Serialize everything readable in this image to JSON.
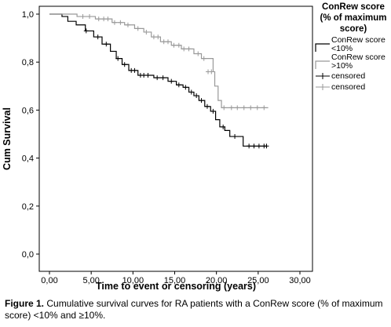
{
  "chart_data": {
    "type": "line",
    "subtype": "kaplan-meier",
    "xlabel": "Time to event or censoring (years)",
    "ylabel": "Cum Survival",
    "xlim": [
      0,
      30
    ],
    "ylim": [
      0,
      1.0
    ],
    "x_ticks": [
      "0,00",
      "5,00",
      "10,00",
      "15,00",
      "20,00",
      "25,00",
      "30,00"
    ],
    "y_ticks": [
      "0,0",
      "0,2",
      "0,4",
      "0,6",
      "0,8",
      "1,0"
    ],
    "grid": false,
    "legend": {
      "title_lines": [
        "ConRew score",
        "(% of maximum",
        "score)"
      ],
      "placement": "right",
      "entries": [
        {
          "label_lines": [
            "ConRew score",
            "<10%"
          ],
          "symbol": "step-line",
          "color": "#000000"
        },
        {
          "label_lines": [
            "ConRew score",
            ">10%"
          ],
          "symbol": "step-line",
          "color": "#999999"
        },
        {
          "label_lines": [
            "censored"
          ],
          "symbol": "plus",
          "color": "#000000"
        },
        {
          "label_lines": [
            "censored"
          ],
          "symbol": "plus",
          "color": "#999999"
        }
      ]
    },
    "series": [
      {
        "name": "ConRew score <10%",
        "color": "#000000",
        "steps": [
          [
            0,
            1.0
          ],
          [
            1.5,
            0.99
          ],
          [
            2.2,
            0.97
          ],
          [
            3.2,
            0.955
          ],
          [
            4.3,
            0.93
          ],
          [
            5.3,
            0.905
          ],
          [
            6.3,
            0.875
          ],
          [
            7.3,
            0.845
          ],
          [
            8.0,
            0.815
          ],
          [
            8.7,
            0.79
          ],
          [
            9.5,
            0.765
          ],
          [
            10.6,
            0.745
          ],
          [
            12.5,
            0.735
          ],
          [
            14.2,
            0.72
          ],
          [
            15.2,
            0.705
          ],
          [
            16.0,
            0.695
          ],
          [
            16.7,
            0.675
          ],
          [
            17.3,
            0.66
          ],
          [
            17.9,
            0.64
          ],
          [
            18.6,
            0.615
          ],
          [
            19.3,
            0.595
          ],
          [
            19.9,
            0.56
          ],
          [
            20.4,
            0.53
          ],
          [
            21.0,
            0.515
          ],
          [
            21.6,
            0.49
          ],
          [
            23.2,
            0.45
          ],
          [
            26.0,
            0.45
          ]
        ],
        "censored": [
          [
            4.4,
            0.93
          ],
          [
            5.8,
            0.905
          ],
          [
            6.8,
            0.875
          ],
          [
            8.2,
            0.815
          ],
          [
            9.0,
            0.79
          ],
          [
            9.8,
            0.765
          ],
          [
            10.2,
            0.765
          ],
          [
            10.9,
            0.745
          ],
          [
            11.3,
            0.745
          ],
          [
            11.8,
            0.745
          ],
          [
            12.9,
            0.735
          ],
          [
            13.6,
            0.735
          ],
          [
            14.6,
            0.72
          ],
          [
            15.5,
            0.705
          ],
          [
            16.3,
            0.695
          ],
          [
            17.0,
            0.675
          ],
          [
            17.6,
            0.66
          ],
          [
            18.2,
            0.64
          ],
          [
            18.9,
            0.615
          ],
          [
            19.6,
            0.595
          ],
          [
            20.8,
            0.53
          ],
          [
            22.2,
            0.49
          ],
          [
            23.9,
            0.45
          ],
          [
            24.5,
            0.45
          ],
          [
            25.1,
            0.45
          ],
          [
            25.7,
            0.45
          ],
          [
            26.0,
            0.45
          ]
        ]
      },
      {
        "name": "ConRew score >10%",
        "color": "#999999",
        "steps": [
          [
            0,
            1.0
          ],
          [
            3.3,
            0.99
          ],
          [
            5.5,
            0.98
          ],
          [
            7.5,
            0.965
          ],
          [
            9.0,
            0.955
          ],
          [
            10.2,
            0.94
          ],
          [
            11.3,
            0.925
          ],
          [
            12.2,
            0.905
          ],
          [
            13.3,
            0.885
          ],
          [
            14.6,
            0.87
          ],
          [
            15.8,
            0.855
          ],
          [
            17.3,
            0.835
          ],
          [
            18.2,
            0.815
          ],
          [
            19.6,
            0.76
          ],
          [
            19.8,
            0.7
          ],
          [
            20.2,
            0.64
          ],
          [
            20.6,
            0.61
          ],
          [
            26.2,
            0.61
          ]
        ],
        "censored": [
          [
            4.0,
            0.99
          ],
          [
            4.8,
            0.99
          ],
          [
            5.9,
            0.98
          ],
          [
            6.5,
            0.98
          ],
          [
            7.0,
            0.98
          ],
          [
            7.8,
            0.965
          ],
          [
            8.5,
            0.965
          ],
          [
            9.4,
            0.955
          ],
          [
            10.6,
            0.94
          ],
          [
            11.6,
            0.925
          ],
          [
            12.5,
            0.905
          ],
          [
            13.0,
            0.905
          ],
          [
            13.7,
            0.885
          ],
          [
            14.2,
            0.885
          ],
          [
            14.9,
            0.87
          ],
          [
            15.5,
            0.87
          ],
          [
            16.1,
            0.855
          ],
          [
            16.7,
            0.855
          ],
          [
            17.8,
            0.835
          ],
          [
            18.5,
            0.815
          ],
          [
            19.0,
            0.76
          ],
          [
            19.4,
            0.76
          ],
          [
            20.9,
            0.61
          ],
          [
            21.8,
            0.61
          ],
          [
            22.5,
            0.61
          ],
          [
            23.3,
            0.61
          ],
          [
            24.1,
            0.61
          ],
          [
            24.9,
            0.61
          ],
          [
            25.7,
            0.61
          ]
        ]
      }
    ]
  },
  "caption": {
    "label": "Figure 1.",
    "text": " Cumulative survival curves for RA patients with a ConRew score (% of maximum score) <10% and ≥10%."
  }
}
